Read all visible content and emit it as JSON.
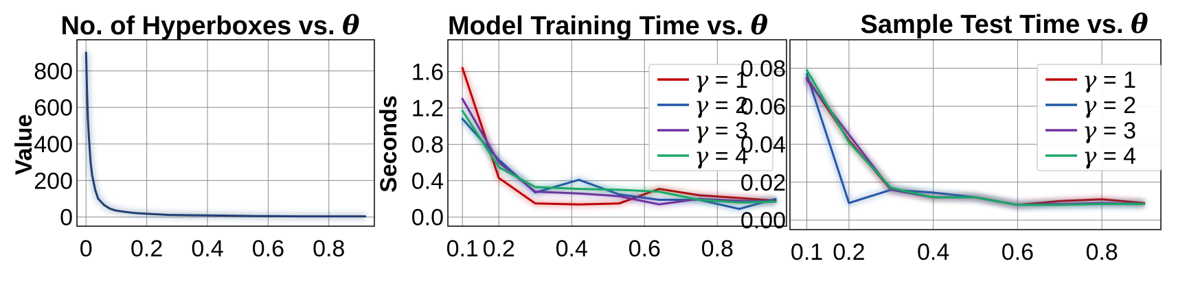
{
  "colors": {
    "gamma1": "#c00000",
    "gamma2": "#2457a8",
    "gamma3": "#7030a0",
    "gamma4": "#1aa868",
    "hyperbox": "#1f3f73"
  },
  "chart_data": [
    {
      "type": "line",
      "title_text": "No. of Hyperboxes vs. ",
      "title_symbol": "θ",
      "xlabel": "",
      "ylabel": "Value",
      "xlim": [
        -0.03,
        0.95
      ],
      "ylim": [
        -50,
        970
      ],
      "xticks": [
        0,
        0.2,
        0.4,
        0.6,
        0.8
      ],
      "xtick_labels": [
        "0",
        "0.2",
        "0.4",
        "0.6",
        "0.8"
      ],
      "yticks": [
        0,
        200,
        400,
        600,
        800
      ],
      "ytick_labels": [
        "0",
        "200",
        "400",
        "600",
        "800"
      ],
      "grid": true,
      "legend": null,
      "series": [
        {
          "color_key": "hyperbox",
          "x": [
            0.0,
            0.003,
            0.006,
            0.01,
            0.015,
            0.02,
            0.03,
            0.04,
            0.06,
            0.08,
            0.1,
            0.13,
            0.16,
            0.2,
            0.27,
            0.35,
            0.45,
            0.55,
            0.6,
            0.7,
            0.8,
            0.92
          ],
          "y": [
            900,
            700,
            540,
            420,
            300,
            230,
            150,
            100,
            65,
            45,
            35,
            28,
            22,
            18,
            12,
            10,
            8,
            6,
            5,
            4,
            4,
            4
          ]
        }
      ]
    },
    {
      "type": "line",
      "title_text": "Model Training Time vs. ",
      "title_symbol": "θ",
      "xlabel": "",
      "ylabel": "Seconds",
      "xlim": [
        0.06,
        0.99
      ],
      "ylim": [
        -0.1,
        1.95
      ],
      "xticks": [
        0.1,
        0.2,
        0.4,
        0.6,
        0.8
      ],
      "xtick_labels": [
        "0.1",
        "0.2",
        "0.4",
        "0.6",
        "0.8"
      ],
      "yticks": [
        0.0,
        0.4,
        0.8,
        1.2,
        1.6
      ],
      "ytick_labels": [
        "0.0",
        "0.4",
        "0.8",
        "1.2",
        "1.6"
      ],
      "grid": true,
      "legend": "top-right",
      "series": [
        {
          "name_symbol": "γ",
          "name_value": " = 1",
          "color_key": "gamma1",
          "x": [
            0.1,
            0.2,
            0.3,
            0.42,
            0.53,
            0.64,
            0.75,
            0.86,
            0.96
          ],
          "y": [
            1.64,
            0.43,
            0.15,
            0.14,
            0.15,
            0.31,
            0.24,
            0.21,
            0.18
          ]
        },
        {
          "name_symbol": "γ",
          "name_value": " = 2",
          "color_key": "gamma2",
          "x": [
            0.1,
            0.2,
            0.3,
            0.42,
            0.53,
            0.64,
            0.75,
            0.86,
            0.96
          ],
          "y": [
            1.08,
            0.63,
            0.27,
            0.41,
            0.25,
            0.19,
            0.19,
            0.09,
            0.2
          ]
        },
        {
          "name_symbol": "γ",
          "name_value": " = 3",
          "color_key": "gamma3",
          "x": [
            0.1,
            0.2,
            0.3,
            0.42,
            0.53,
            0.64,
            0.75,
            0.86,
            0.96
          ],
          "y": [
            1.3,
            0.6,
            0.28,
            0.26,
            0.23,
            0.14,
            0.2,
            0.18,
            0.17
          ]
        },
        {
          "name_symbol": "γ",
          "name_value": " = 4",
          "color_key": "gamma4",
          "x": [
            0.1,
            0.2,
            0.3,
            0.42,
            0.53,
            0.64,
            0.75,
            0.86,
            0.96
          ],
          "y": [
            1.17,
            0.55,
            0.33,
            0.31,
            0.3,
            0.28,
            0.19,
            0.16,
            0.17
          ]
        }
      ]
    },
    {
      "type": "line",
      "title_text": "Sample Test Time vs. ",
      "title_symbol": "θ",
      "xlabel": "",
      "ylabel": "",
      "xlim": [
        0.06,
        0.94
      ],
      "ylim": [
        -0.005,
        0.095
      ],
      "xticks": [
        0.1,
        0.2,
        0.4,
        0.6,
        0.8
      ],
      "xtick_labels": [
        "0.1",
        "0.2",
        "0.4",
        "0.6",
        "0.8"
      ],
      "yticks": [
        0.0,
        0.02,
        0.04,
        0.06,
        0.08
      ],
      "ytick_labels": [
        "0.00",
        "0.02",
        "0.04",
        "0.06",
        "0.08"
      ],
      "grid": true,
      "legend": "top-right",
      "series": [
        {
          "name_symbol": "γ",
          "name_value": " = 1",
          "color_key": "gamma1",
          "x": [
            0.1,
            0.2,
            0.3,
            0.4,
            0.5,
            0.6,
            0.7,
            0.8,
            0.9
          ],
          "y": [
            0.075,
            0.042,
            0.016,
            0.012,
            0.012,
            0.008,
            0.01,
            0.011,
            0.009
          ]
        },
        {
          "name_symbol": "γ",
          "name_value": " = 2",
          "color_key": "gamma2",
          "x": [
            0.1,
            0.2,
            0.3,
            0.4,
            0.5,
            0.6,
            0.7,
            0.8,
            0.9
          ],
          "y": [
            0.077,
            0.009,
            0.016,
            0.0145,
            0.012,
            0.008,
            0.0085,
            0.0085,
            0.0085
          ]
        },
        {
          "name_symbol": "γ",
          "name_value": " = 3",
          "color_key": "gamma3",
          "x": [
            0.1,
            0.2,
            0.3,
            0.4,
            0.5,
            0.6,
            0.7,
            0.8,
            0.9
          ],
          "y": [
            0.074,
            0.045,
            0.016,
            0.012,
            0.012,
            0.008,
            0.0085,
            0.009,
            0.0085
          ]
        },
        {
          "name_symbol": "γ",
          "name_value": " = 4",
          "color_key": "gamma4",
          "x": [
            0.1,
            0.2,
            0.3,
            0.4,
            0.5,
            0.6,
            0.7,
            0.8,
            0.9
          ],
          "y": [
            0.079,
            0.041,
            0.017,
            0.012,
            0.012,
            0.008,
            0.008,
            0.0085,
            0.0085
          ]
        }
      ]
    }
  ]
}
